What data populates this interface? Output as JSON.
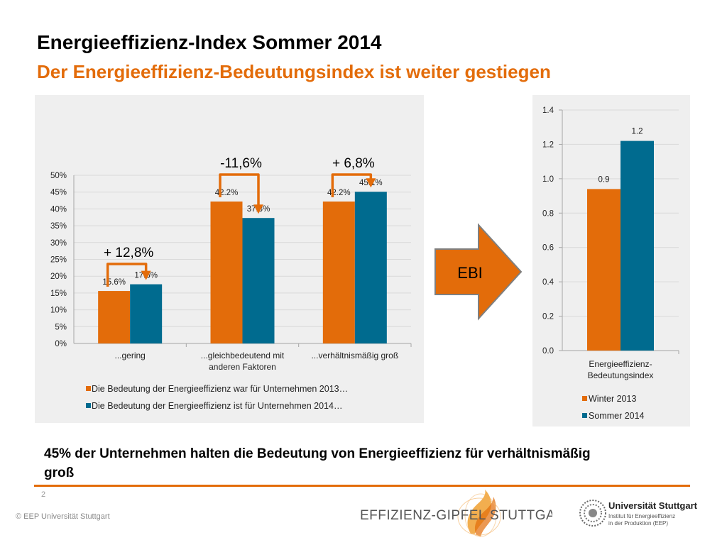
{
  "slide": {
    "title": "Energieeffizienz-Index Sommer 2014",
    "subtitle": "Der Energieeffizienz-Bedeutungsindex ist weiter gestiegen",
    "note": "45% der Unternehmen halten die Bedeutung von Energieeffizienz für verhältnismäßig groß",
    "page_number": "2",
    "copyright": "© EEP Universität Stuttgart",
    "arrow_label": "EBI"
  },
  "logos": {
    "gipfel_text": "EFFIZIENZ-GIPFEL STUTTGART",
    "university_name": "Universität Stuttgart",
    "university_sub1": "Institut für Energieeffizienz",
    "university_sub2": "in der Produktion (EEP)"
  },
  "colors": {
    "accent": "#e36c0a",
    "series1": "#e36c0a",
    "series2": "#006b8f",
    "grid": "#d9d9d9"
  },
  "chart_data": [
    {
      "type": "bar",
      "categories": [
        "...gering",
        "...gleichbedeutend mit anderen Faktoren",
        "...verhältnismäßig groß"
      ],
      "series": [
        {
          "name": "Die Bedeutung der Energieeffizienz war für Unternehmen 2013…",
          "values": [
            15.6,
            42.2,
            42.2
          ],
          "labels": [
            "15.6%",
            "42.2%",
            "42.2%"
          ]
        },
        {
          "name": "Die Bedeutung der Energieeffizienz ist für Unternehmen 2014…",
          "values": [
            17.6,
            37.3,
            45.1
          ],
          "labels": [
            "17.6%",
            "37.3%",
            "45.1%"
          ]
        }
      ],
      "ylim": [
        0,
        50
      ],
      "yticks": [
        "0%",
        "5%",
        "10%",
        "15%",
        "20%",
        "25%",
        "30%",
        "35%",
        "40%",
        "45%",
        "50%"
      ],
      "annotations": [
        "+ 12,8%",
        "-11,6%",
        "+ 6,8%"
      ],
      "grid": true,
      "legend": "bottom"
    },
    {
      "type": "bar",
      "categories": [
        "Energieeffizienz-Bedeutungsindex"
      ],
      "series": [
        {
          "name": "Winter 2013",
          "values": [
            0.94
          ],
          "label": "0.9"
        },
        {
          "name": "Sommer 2014",
          "values": [
            1.22
          ],
          "label": "1.2"
        }
      ],
      "ylim": [
        0,
        1.4
      ],
      "yticks": [
        "0.0",
        "0.2",
        "0.4",
        "0.6",
        "0.8",
        "1.0",
        "1.2",
        "1.4"
      ],
      "grid": true,
      "legend": "bottom"
    }
  ]
}
